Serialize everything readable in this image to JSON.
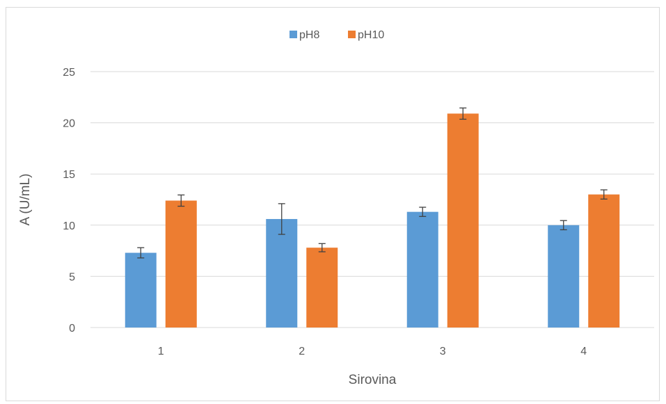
{
  "chart_data": {
    "type": "bar",
    "title": "",
    "xlabel": "Sirovina",
    "ylabel": "A (U/mL)",
    "categories": [
      "1",
      "2",
      "3",
      "4"
    ],
    "ylim": [
      0,
      25
    ],
    "yticks": [
      "0",
      "5",
      "10",
      "15",
      "20",
      "25"
    ],
    "grid": true,
    "legend_position": "top",
    "series": [
      {
        "name": "pH8",
        "color": "#5b9bd5",
        "values": [
          7.3,
          10.6,
          11.3,
          10.0
        ],
        "errors": [
          0.5,
          1.5,
          0.45,
          0.45
        ]
      },
      {
        "name": "pH10",
        "color": "#ed7d31",
        "values": [
          12.4,
          7.8,
          20.9,
          13.0
        ],
        "errors": [
          0.55,
          0.4,
          0.55,
          0.45
        ]
      }
    ]
  }
}
